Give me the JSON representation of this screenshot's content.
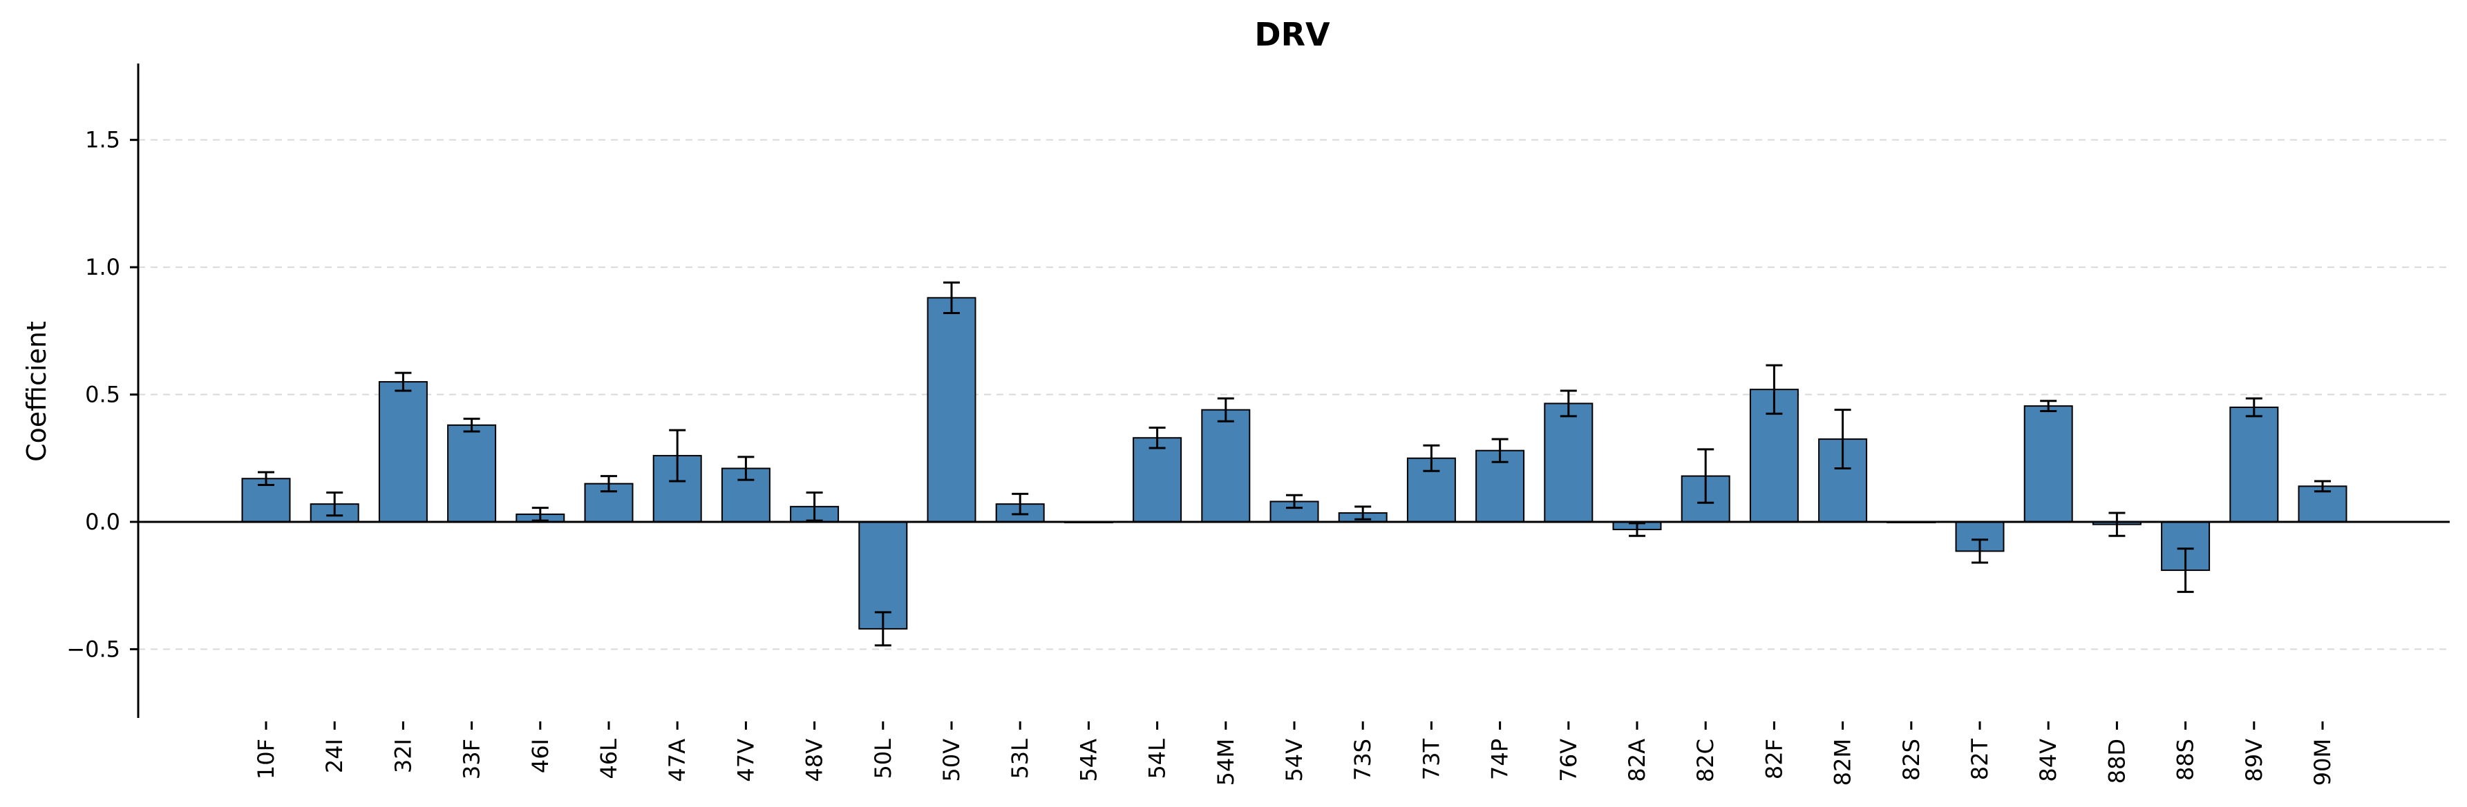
{
  "chart_data": {
    "type": "bar",
    "title": "DRV",
    "xlabel": "",
    "ylabel": "Coefficient",
    "ylim": [
      -0.77,
      1.8
    ],
    "yticks": [
      -0.5,
      0.0,
      0.5,
      1.0,
      1.5
    ],
    "ytick_labels": [
      "−0.5",
      "0.0",
      "0.5",
      "1.0",
      "1.5"
    ],
    "grid": true,
    "bar_color": "#4682b4",
    "categories": [
      "10F",
      "24I",
      "32I",
      "33F",
      "46I",
      "46L",
      "47A",
      "47V",
      "48V",
      "50L",
      "50V",
      "53L",
      "54A",
      "54L",
      "54M",
      "54V",
      "73S",
      "73T",
      "74P",
      "76V",
      "82A",
      "82C",
      "82F",
      "82M",
      "82S",
      "82T",
      "84V",
      "88D",
      "88S",
      "89V",
      "90M"
    ],
    "values": [
      0.17,
      0.07,
      0.55,
      0.38,
      0.03,
      0.15,
      0.26,
      0.21,
      0.06,
      -0.42,
      0.88,
      0.07,
      0.0,
      0.33,
      0.44,
      0.08,
      0.035,
      0.25,
      0.28,
      0.465,
      -0.03,
      0.18,
      0.52,
      0.325,
      0.0,
      -0.115,
      0.455,
      -0.01,
      -0.19,
      0.45,
      0.14
    ],
    "errors": [
      0.025,
      0.045,
      0.035,
      0.025,
      0.025,
      0.03,
      0.1,
      0.045,
      0.055,
      0.065,
      0.06,
      0.04,
      0.0,
      0.04,
      0.045,
      0.025,
      0.025,
      0.05,
      0.045,
      0.05,
      0.025,
      0.105,
      0.095,
      0.115,
      0.0,
      0.045,
      0.02,
      0.045,
      0.085,
      0.035,
      0.02
    ]
  }
}
